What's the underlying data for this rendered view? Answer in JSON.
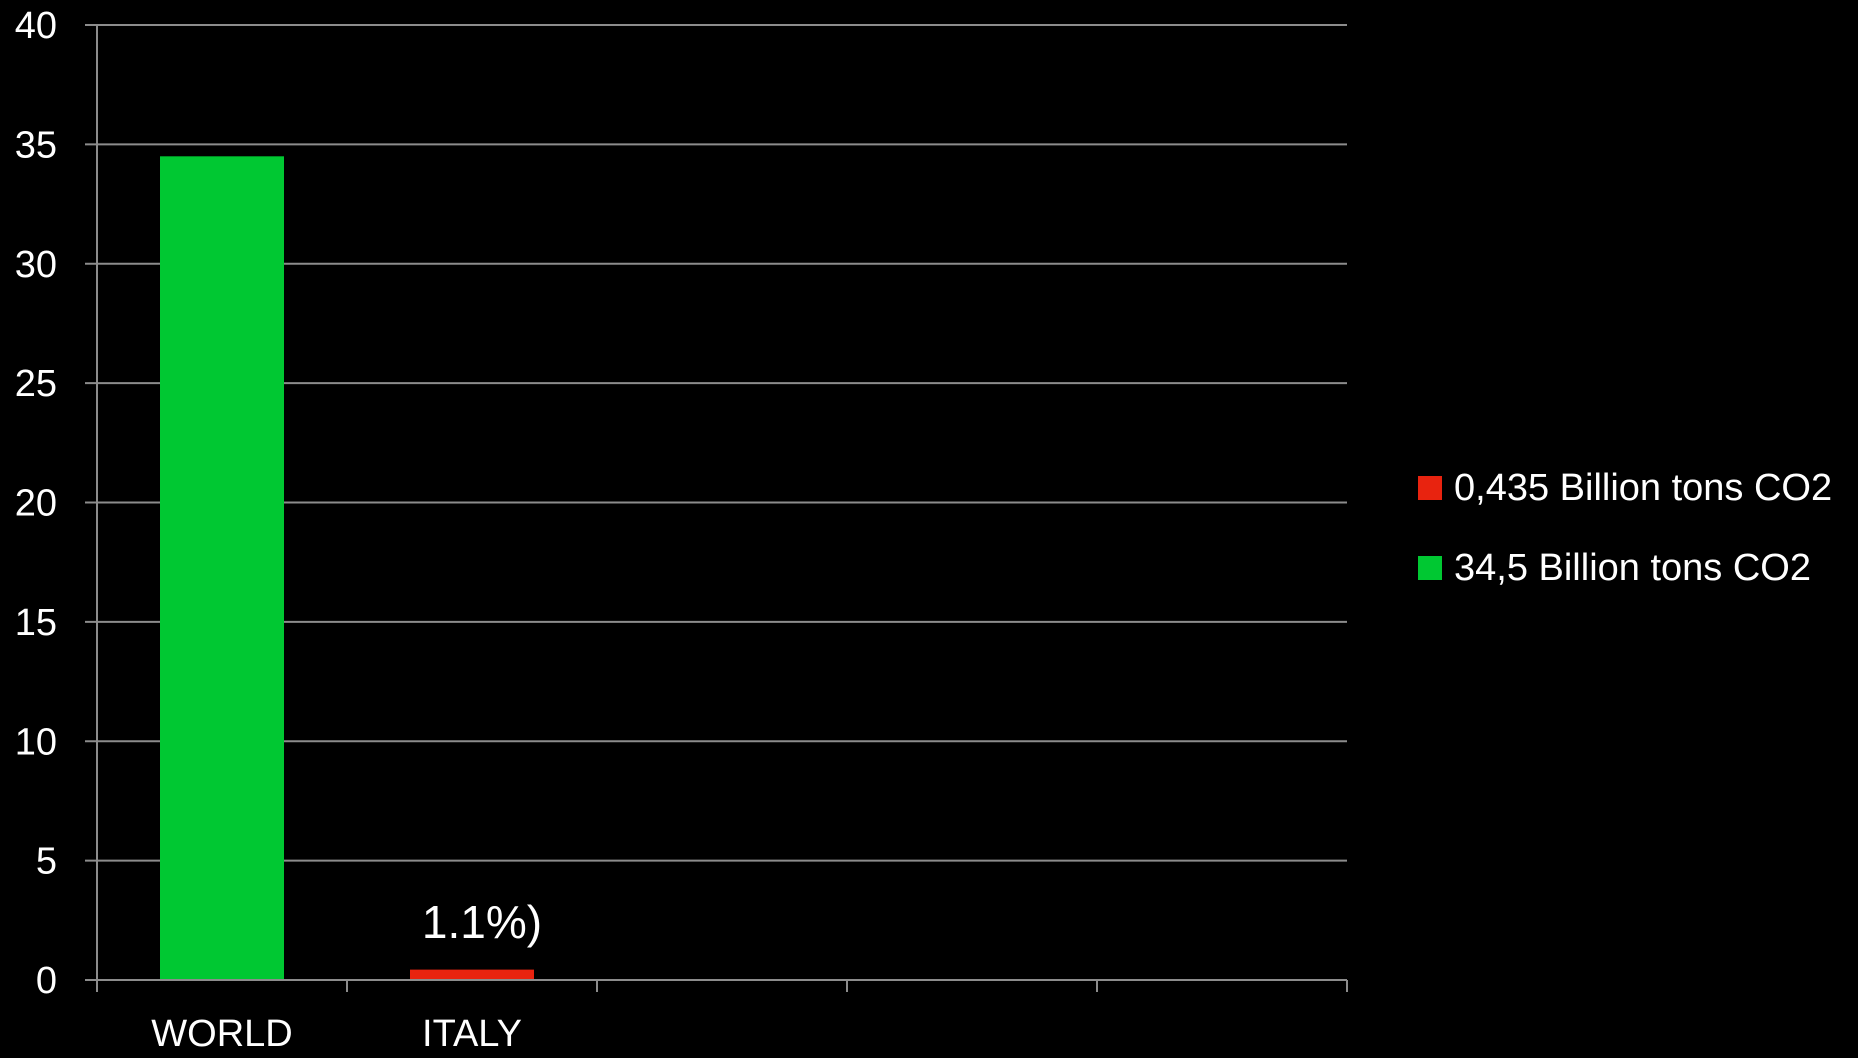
{
  "chart_data": {
    "type": "bar",
    "categories": [
      "WORLD",
      "ITALY",
      "",
      "",
      ""
    ],
    "series": [
      {
        "name": "0,435 Billion tons CO2",
        "color": "#e8230f",
        "values": [
          null,
          0.435,
          null,
          null,
          null
        ]
      },
      {
        "name": "34,5 Billion tons CO2",
        "color": "#00c832",
        "values": [
          34.5,
          null,
          null,
          null,
          null
        ]
      }
    ],
    "y_ticks": [
      "0",
      "5",
      "10",
      "15",
      "20",
      "25",
      "30",
      "35",
      "40"
    ],
    "ylim": [
      0,
      40
    ],
    "grid": true,
    "legend_position": "right",
    "annotation": {
      "text": "1.1%)",
      "category": "ITALY"
    }
  },
  "legend": {
    "items": [
      {
        "label": "0,435 Billion tons CO2",
        "color": "#e8230f"
      },
      {
        "label": "34,5 Billion tons CO2",
        "color": "#00c832"
      }
    ]
  }
}
